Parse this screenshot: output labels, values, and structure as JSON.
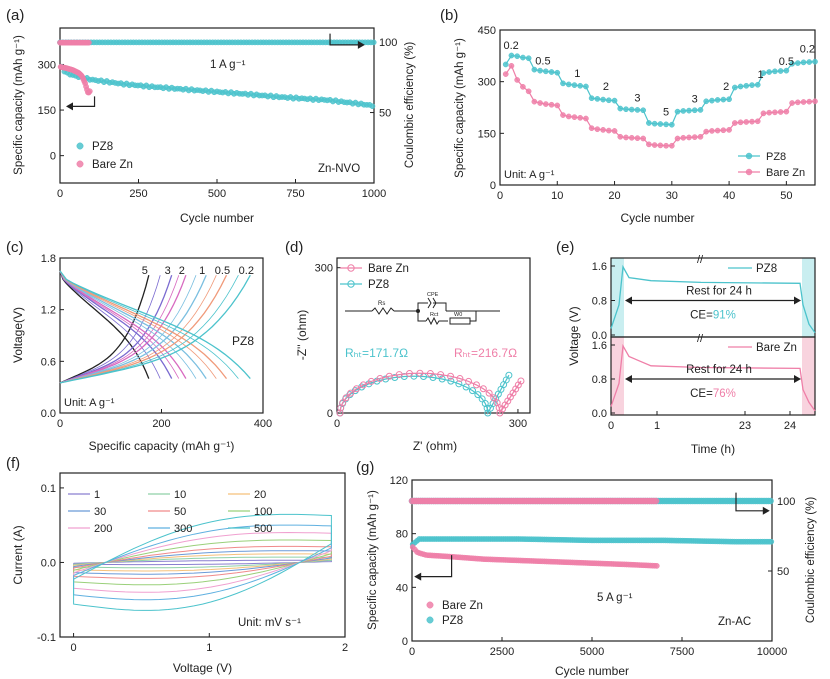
{
  "colors": {
    "cyan": "#4cc3cc",
    "pink": "#ef7fa8",
    "axis": "#222222",
    "cyan_band": "#c9eef0",
    "pink_band": "#f8d3de"
  },
  "chart_data": [
    {
      "panel": "a",
      "type": "scatter",
      "panel_label": "(a)",
      "xlabel": "Cycle number",
      "ylabel": "Specific capacity (mAh g⁻¹)",
      "y2label": "Coulombic efficiency (%)",
      "xlim": [
        0,
        1000
      ],
      "ylim": [
        -90,
        420
      ],
      "y2lim": [
        0,
        110
      ],
      "xticks": [
        "0",
        "250",
        "500",
        "750",
        "1000"
      ],
      "yticks": [
        "0",
        "150",
        "300"
      ],
      "y2ticks": [
        "50",
        "100"
      ],
      "annotations": {
        "current": "1 A g⁻¹",
        "system": "Zn-NVO"
      },
      "legend": [
        "PZ8",
        "Bare Zn"
      ],
      "series": [
        {
          "name": "PZ8 capacity",
          "x": [
            5,
            20,
            50,
            100,
            150,
            200,
            300,
            400,
            500,
            600,
            700,
            800,
            850,
            900,
            950,
            1000
          ],
          "y": [
            290,
            272,
            262,
            250,
            243,
            236,
            226,
            218,
            210,
            202,
            193,
            186,
            183,
            177,
            171,
            164
          ]
        },
        {
          "name": "Bare Zn capacity",
          "x": [
            2,
            20,
            40,
            60,
            70,
            80,
            85,
            90,
            95
          ],
          "y": [
            292,
            288,
            282,
            272,
            262,
            238,
            220,
            205,
            212
          ]
        },
        {
          "name": "PZ8 CE",
          "x": [
            0,
            1000
          ],
          "y": [
            99.8,
            99.8
          ]
        },
        {
          "name": "Bare Zn CE",
          "x": [
            0,
            95
          ],
          "y": [
            99.6,
            99.6
          ]
        }
      ]
    },
    {
      "panel": "b",
      "type": "line",
      "panel_label": "(b)",
      "xlabel": "Cycle number",
      "ylabel": "Specific capacity (mAh g⁻¹)",
      "xlim": [
        0,
        55
      ],
      "ylim": [
        0,
        450
      ],
      "xticks": [
        "0",
        "10",
        "20",
        "30",
        "40",
        "50"
      ],
      "yticks": [
        "0",
        "150",
        "300",
        "450"
      ],
      "unit_note": "Unit: A g⁻¹",
      "rate_labels": [
        "0.2",
        "0.5",
        "1",
        "2",
        "3",
        "5",
        "3",
        "2",
        "1",
        "0.5",
        "0.2"
      ],
      "legend": [
        "PZ8",
        "Bare Zn"
      ],
      "series": [
        {
          "name": "PZ8",
          "x": [
            1,
            2,
            3,
            4,
            5,
            6,
            7,
            8,
            9,
            10,
            11,
            12,
            13,
            14,
            15,
            16,
            17,
            18,
            19,
            20,
            21,
            22,
            23,
            24,
            25,
            26,
            27,
            28,
            29,
            30,
            31,
            32,
            33,
            34,
            35,
            36,
            37,
            38,
            39,
            40,
            41,
            42,
            43,
            44,
            45,
            46,
            47,
            48,
            49,
            50,
            51,
            52,
            53,
            54,
            55
          ],
          "y": [
            350,
            376,
            374,
            370,
            368,
            335,
            332,
            330,
            328,
            326,
            295,
            292,
            290,
            288,
            286,
            252,
            250,
            248,
            246,
            245,
            222,
            220,
            219,
            218,
            217,
            180,
            178,
            177,
            176,
            175,
            213,
            215,
            216,
            217,
            218,
            243,
            245,
            247,
            248,
            249,
            283,
            286,
            288,
            290,
            291,
            325,
            328,
            330,
            331,
            332,
            352,
            354,
            356,
            357,
            358
          ]
        },
        {
          "name": "Bare Zn",
          "x": [
            1,
            2,
            3,
            4,
            5,
            6,
            7,
            8,
            9,
            10,
            11,
            12,
            13,
            14,
            15,
            16,
            17,
            18,
            19,
            20,
            21,
            22,
            23,
            24,
            25,
            26,
            27,
            28,
            29,
            30,
            31,
            32,
            33,
            34,
            35,
            36,
            37,
            38,
            39,
            40,
            41,
            42,
            43,
            44,
            45,
            46,
            47,
            48,
            49,
            50,
            51,
            52,
            53,
            54,
            55
          ],
          "y": [
            322,
            346,
            305,
            285,
            272,
            242,
            238,
            235,
            233,
            231,
            203,
            199,
            197,
            195,
            193,
            165,
            162,
            160,
            158,
            157,
            140,
            138,
            137,
            136,
            135,
            118,
            116,
            115,
            114,
            114,
            135,
            137,
            138,
            139,
            140,
            155,
            157,
            158,
            159,
            160,
            180,
            182,
            183,
            184,
            185,
            208,
            210,
            211,
            212,
            213,
            238,
            240,
            241,
            242,
            243
          ]
        }
      ]
    },
    {
      "panel": "c",
      "type": "line",
      "panel_label": "(c)",
      "xlabel": "Specific capacity (mAh g⁻¹)",
      "ylabel": "Voltage(V)",
      "xlim": [
        0,
        400
      ],
      "ylim": [
        0,
        1.8
      ],
      "xticks": [
        "0",
        "200",
        "400"
      ],
      "yticks": [
        "0.0",
        "0.6",
        "1.2",
        "1.8"
      ],
      "unit_note": "Unit: A g⁻¹",
      "sample": "PZ8",
      "rate_labels": [
        "5",
        "3",
        "2",
        "1",
        "0.5",
        "0.2"
      ],
      "capacities": [
        175,
        220,
        248,
        288,
        328,
        375
      ],
      "curve_colors": [
        "#222222",
        "#7a6ad0",
        "#d86ac0",
        "#7bbfe0",
        "#f09a7a",
        "#4cc3cc"
      ]
    },
    {
      "panel": "d",
      "type": "scatter",
      "panel_label": "(d)",
      "xlabel": "Z' (ohm)",
      "ylabel": "-Z'' (ohm)",
      "xlim": [
        0,
        320
      ],
      "ylim": [
        0,
        320
      ],
      "xticks": [
        "0",
        "300"
      ],
      "yticks": [
        "0",
        "300"
      ],
      "legend": [
        "Bare Zn",
        "PZ8"
      ],
      "rct_pz8": "Rₕₜ=171.7Ω",
      "rct_bare": "Rₕₜ=216.7Ω",
      "circuit": {
        "r_s": "Rs",
        "cpe": "CPE",
        "r_ct": "Rct",
        "warburg": "W0"
      },
      "series": [
        {
          "name": "PZ8",
          "semicircle_start": 5,
          "semicircle_end": 250,
          "tail_end_x": 285,
          "tail_end_y": 78
        },
        {
          "name": "Bare Zn",
          "semicircle_start": 5,
          "semicircle_end": 270,
          "tail_end_x": 305,
          "tail_end_y": 66
        }
      ]
    },
    {
      "panel": "e",
      "type": "line",
      "panel_label": "(e)",
      "xlabel": "Time (h)",
      "ylabel": "Voltage (V)",
      "ylim": [
        0,
        1.6
      ],
      "xticks": [
        "0",
        "1",
        "23",
        "24"
      ],
      "yticks": [
        "0.0",
        "0.8",
        "1.6"
      ],
      "top": {
        "legend": "PZ8",
        "rest": "Rest for 24 h",
        "ce": "CE=",
        "ce_value": "91%"
      },
      "bottom": {
        "legend": "Bare Zn",
        "rest": "Rest for 24 h",
        "ce": "CE=",
        "ce_value": "76%"
      }
    },
    {
      "panel": "f",
      "type": "line",
      "panel_label": "(f)",
      "xlabel": "Voltage (V)",
      "ylabel": "Current (A)",
      "xlim": [
        -0.1,
        2.0
      ],
      "ylim": [
        -0.1,
        0.12
      ],
      "xticks": [
        "0",
        "1",
        "2"
      ],
      "yticks": [
        "-0.1",
        "0.0",
        "0.1"
      ],
      "unit_note": "Unit: mV s⁻¹",
      "legend": [
        "1",
        "10",
        "20",
        "30",
        "50",
        "100",
        "200",
        "300",
        "500"
      ],
      "legend_colors": [
        "#8a7fd0",
        "#8fd1a8",
        "#f5c07a",
        "#6a9ad8",
        "#f08a8a",
        "#9ad07a",
        "#f0a0d0",
        "#5fb0e0",
        "#4cc3cc"
      ],
      "amplitudes": [
        0.004,
        0.01,
        0.016,
        0.022,
        0.03,
        0.042,
        0.056,
        0.07,
        0.09
      ]
    },
    {
      "panel": "g",
      "type": "scatter",
      "panel_label": "(g)",
      "xlabel": "Cycle number",
      "ylabel": "Specific capacity (mAh g⁻¹)",
      "y2label": "Coulombic efficiency (%)",
      "xlim": [
        0,
        10000
      ],
      "ylim": [
        0,
        120
      ],
      "y2lim": [
        0,
        115
      ],
      "xticks": [
        "0",
        "2500",
        "5000",
        "7500",
        "10000"
      ],
      "yticks": [
        "0",
        "40",
        "80",
        "120"
      ],
      "y2ticks": [
        "50",
        "100"
      ],
      "annotations": {
        "current": "5 A g⁻¹",
        "system": "Zn-AC"
      },
      "legend": [
        "Bare Zn",
        "PZ8"
      ],
      "series": [
        {
          "name": "PZ8 capacity",
          "x": [
            20,
            200,
            500,
            1000,
            2000,
            3000,
            4000,
            5000,
            6000,
            7000,
            8000,
            9000,
            10000
          ],
          "y": [
            72,
            76,
            76,
            76,
            76,
            76,
            75.5,
            75,
            75,
            75,
            74.5,
            74,
            74
          ]
        },
        {
          "name": "Bare Zn capacity",
          "x": [
            20,
            150,
            400,
            1000,
            2000,
            3000,
            4000,
            5000,
            6000,
            6800
          ],
          "y": [
            70,
            66,
            64,
            63,
            61,
            60,
            59,
            58,
            57,
            56
          ]
        },
        {
          "name": "PZ8 CE",
          "x": [
            0,
            10000
          ],
          "y": [
            100,
            100
          ]
        },
        {
          "name": "Bare Zn CE",
          "x": [
            0,
            6800
          ],
          "y": [
            100,
            100
          ]
        }
      ]
    }
  ]
}
